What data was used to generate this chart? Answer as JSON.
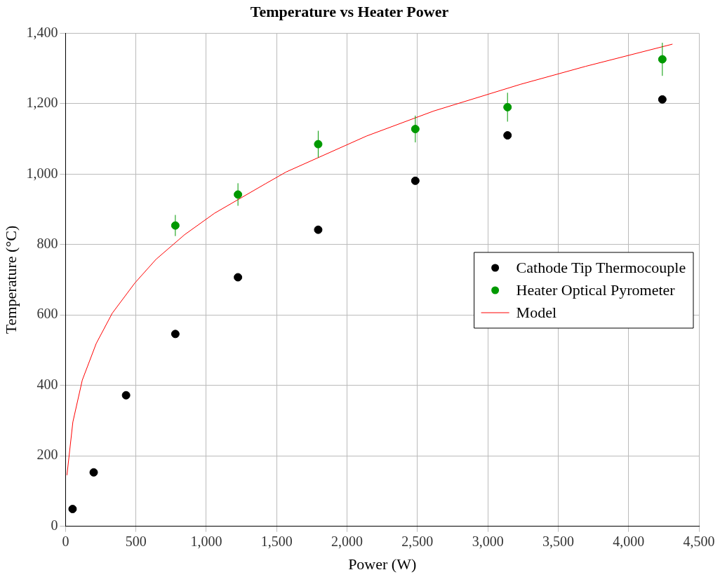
{
  "chart_data": {
    "type": "scatter",
    "title": "Temperature vs Heater Power",
    "xlabel": "Power (W)",
    "ylabel": "Temperature (°C)",
    "xlim": [
      0,
      4500
    ],
    "xticks": [
      0,
      500,
      {
        "value": 1000,
        "label": "1,000"
      },
      {
        "value": 1500,
        "label": "1,500"
      },
      {
        "value": 2000,
        "label": "2,000"
      },
      {
        "value": 2500,
        "label": "2,500"
      },
      {
        "value": 3000,
        "label": "3,000"
      },
      {
        "value": 3500,
        "label": "3,500"
      },
      {
        "value": 4000,
        "label": "4,000"
      },
      {
        "value": 4500,
        "label": "4,500"
      }
    ],
    "ylim": [
      0,
      1400
    ],
    "yticks": [
      0,
      200,
      400,
      600,
      800,
      {
        "value": 1000,
        "label": "1,000"
      },
      {
        "value": 1200,
        "label": "1,200"
      },
      {
        "value": 1400,
        "label": "1,400"
      }
    ],
    "grid": true,
    "legend": "right",
    "marker": "circle",
    "series": [
      {
        "name": "Cathode Tip Thermocouple",
        "color": "#000000",
        "x": [
          50,
          200,
          430,
          780,
          1225,
          1795,
          2485,
          3140,
          4240
        ],
        "values": [
          49,
          153,
          372,
          546,
          707,
          842,
          981,
          1110,
          1212
        ]
      },
      {
        "name": "Heater Optical Pyrometer",
        "color": "#009900",
        "x": [
          780,
          1225,
          1795,
          2485,
          3140,
          4240
        ],
        "values": [
          854,
          942,
          1085,
          1128,
          1190,
          1326
        ],
        "errors": [
          30,
          32,
          38,
          38,
          41,
          47
        ]
      },
      {
        "name": "Model",
        "type": "line",
        "marker": "none",
        "color": "#ff0000",
        "x": [
          10,
          52,
          119,
          218,
          332,
          493,
          643,
          846,
          1059,
          1422,
          1567,
          2138,
          2615,
          3233,
          3695,
          4312
        ],
        "values": [
          145,
          296,
          415,
          519,
          605,
          691,
          758,
          828,
          889,
          973,
          1006,
          1108,
          1179,
          1255,
          1306,
          1369
        ]
      }
    ]
  }
}
